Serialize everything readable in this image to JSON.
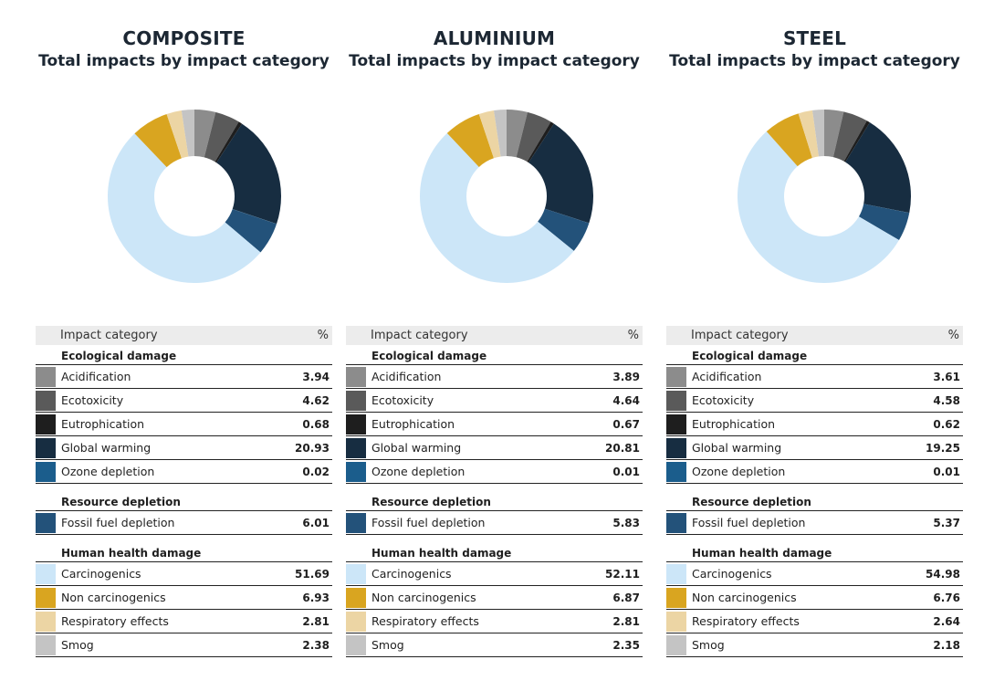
{
  "colors": {
    "Acidification": "#8c8c8c",
    "Ecotoxicity": "#5a5a5a",
    "Eutrophication": "#1e1e1e",
    "Global warming": "#172d41",
    "Ozone depletion": "#1b5d8c",
    "Fossil fuel depletion": "#23527a",
    "Carcinogenics": "#cce6f8",
    "Non carcinogenics": "#d9a520",
    "Respiratory effects": "#ecd5a4",
    "Smog": "#c4c4c4"
  },
  "table_header": {
    "category": "Impact category",
    "percent": "%"
  },
  "chart_data": [
    {
      "type": "pie",
      "title": "COMPOSITE",
      "subtitle": "Total impacts by impact category",
      "groups": [
        {
          "name": "Ecological damage",
          "items": [
            {
              "label": "Acidification",
              "value": "3.94"
            },
            {
              "label": "Ecotoxicity",
              "value": "4.62"
            },
            {
              "label": "Eutrophication",
              "value": "0.68"
            },
            {
              "label": "Global warming",
              "value": "20.93"
            },
            {
              "label": "Ozone depletion",
              "value": "0.02"
            }
          ]
        },
        {
          "name": "Resource depletion",
          "items": [
            {
              "label": "Fossil fuel depletion",
              "value": "6.01"
            }
          ]
        },
        {
          "name": "Human health damage",
          "items": [
            {
              "label": "Carcinogenics",
              "value": "51.69"
            },
            {
              "label": "Non carcinogenics",
              "value": "6.93"
            },
            {
              "label": "Respiratory effects",
              "value": "2.81"
            },
            {
              "label": "Smog",
              "value": "2.38"
            }
          ]
        }
      ]
    },
    {
      "type": "pie",
      "title": "ALUMINIUM",
      "subtitle": "Total impacts by impact category",
      "groups": [
        {
          "name": "Ecological damage",
          "items": [
            {
              "label": "Acidification",
              "value": "3.89"
            },
            {
              "label": "Ecotoxicity",
              "value": "4.64"
            },
            {
              "label": "Eutrophication",
              "value": "0.67"
            },
            {
              "label": "Global warming",
              "value": "20.81"
            },
            {
              "label": "Ozone depletion",
              "value": "0.01"
            }
          ]
        },
        {
          "name": "Resource depletion",
          "items": [
            {
              "label": "Fossil fuel depletion",
              "value": "5.83"
            }
          ]
        },
        {
          "name": "Human health damage",
          "items": [
            {
              "label": "Carcinogenics",
              "value": "52.11"
            },
            {
              "label": "Non carcinogenics",
              "value": "6.87"
            },
            {
              "label": "Respiratory effects",
              "value": "2.81"
            },
            {
              "label": "Smog",
              "value": "2.35"
            }
          ]
        }
      ]
    },
    {
      "type": "pie",
      "title": "STEEL",
      "subtitle": "Total impacts by impact category",
      "groups": [
        {
          "name": "Ecological damage",
          "items": [
            {
              "label": "Acidification",
              "value": "3.61"
            },
            {
              "label": "Ecotoxicity",
              "value": "4.58"
            },
            {
              "label": "Eutrophication",
              "value": "0.62"
            },
            {
              "label": "Global warming",
              "value": "19.25"
            },
            {
              "label": "Ozone depletion",
              "value": "0.01"
            }
          ]
        },
        {
          "name": "Resource depletion",
          "items": [
            {
              "label": "Fossil fuel depletion",
              "value": "5.37"
            }
          ]
        },
        {
          "name": "Human health damage",
          "items": [
            {
              "label": "Carcinogenics",
              "value": "54.98"
            },
            {
              "label": "Non carcinogenics",
              "value": "6.76"
            },
            {
              "label": "Respiratory effects",
              "value": "2.64"
            },
            {
              "label": "Smog",
              "value": "2.18"
            }
          ]
        }
      ]
    }
  ]
}
